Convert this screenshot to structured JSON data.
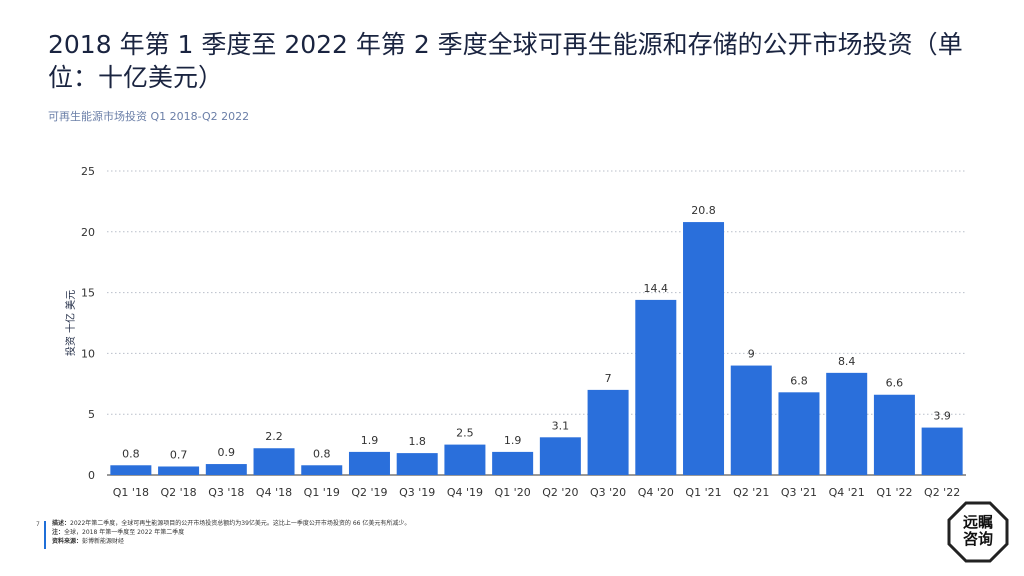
{
  "title": "2018 年第 1 季度至 2022 年第 2 季度全球可再生能源和存储的公开市场投资（单位：十亿美元）",
  "subtitle": "可再生能源市场投资 Q1 2018-Q2 2022",
  "chart_data": {
    "type": "bar",
    "categories": [
      "Q1 '18",
      "Q2 '18",
      "Q3 '18",
      "Q4 '18",
      "Q1 '19",
      "Q2 '19",
      "Q3 '19",
      "Q4 '19",
      "Q1 '20",
      "Q2 '20",
      "Q3 '20",
      "Q4 '20",
      "Q1 '21",
      "Q2 '21",
      "Q3 '21",
      "Q4 '21",
      "Q1 '22",
      "Q2 '22"
    ],
    "values": [
      0.8,
      0.7,
      0.9,
      2.2,
      0.8,
      1.9,
      1.8,
      2.5,
      1.9,
      3.1,
      7,
      14.4,
      20.8,
      9,
      6.8,
      8.4,
      6.6,
      3.9
    ],
    "value_labels": [
      "0.8",
      "0.7",
      "0.9",
      "2.2",
      "0.8",
      "1.9",
      "1.8",
      "2.5",
      "1.9",
      "3.1",
      "7",
      "14.4",
      "20.8",
      "9",
      "6.8",
      "8.4",
      "6.6",
      "3.9"
    ],
    "ylabel": "投资 十亿 美元",
    "ylim": [
      0,
      25
    ],
    "yticks": [
      "0",
      "5",
      "10",
      "15",
      "20",
      "25"
    ],
    "grid": true,
    "bar_color": "#2a6fdb"
  },
  "footnotes": {
    "page_number": "7",
    "desc_label": "描述：",
    "desc_text": "2022年第二季度，全球可再生能源项目的公开市场投资总额约为39亿美元。这比上一季度公开市场投资的 66 亿美元有所减少。",
    "note_label": "注：",
    "note_text": "全球，2018 年第一季度至 2022 年第二季度",
    "source_label": "资料来源：",
    "source_text": "彭博新能源财经"
  },
  "logo": {
    "line1": "远瞩",
    "line2": "咨询"
  }
}
